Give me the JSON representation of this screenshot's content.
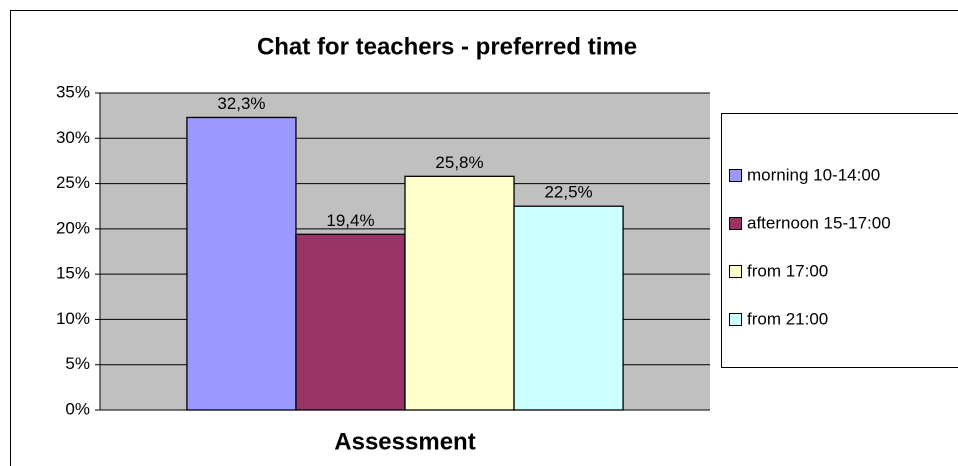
{
  "chart_data": {
    "type": "bar",
    "title": "Chat for teachers - preferred time",
    "categories": [
      "Assessment"
    ],
    "series": [
      {
        "name": "morning 10-14:00",
        "color": "#9999ff",
        "values": [
          32.3
        ],
        "value_labels": [
          "32,3%"
        ]
      },
      {
        "name": "afternoon 15-17:00",
        "color": "#993366",
        "values": [
          19.4
        ],
        "value_labels": [
          "19,4%"
        ]
      },
      {
        "name": "from 17:00",
        "color": "#ffffcc",
        "values": [
          25.8
        ],
        "value_labels": [
          "25,8%"
        ]
      },
      {
        "name": "from 21:00",
        "color": "#ccffff",
        "values": [
          22.5
        ],
        "value_labels": [
          "22,5%"
        ]
      }
    ],
    "ylim": [
      0,
      35
    ],
    "yticks": [
      {
        "value": 0,
        "label": "0%"
      },
      {
        "value": 5,
        "label": "5%"
      },
      {
        "value": 10,
        "label": "10%"
      },
      {
        "value": 15,
        "label": "15%"
      },
      {
        "value": 20,
        "label": "20%"
      },
      {
        "value": 25,
        "label": "25%"
      },
      {
        "value": 30,
        "label": "30%"
      },
      {
        "value": 35,
        "label": "35%"
      }
    ],
    "grid": true,
    "legend": "right"
  }
}
